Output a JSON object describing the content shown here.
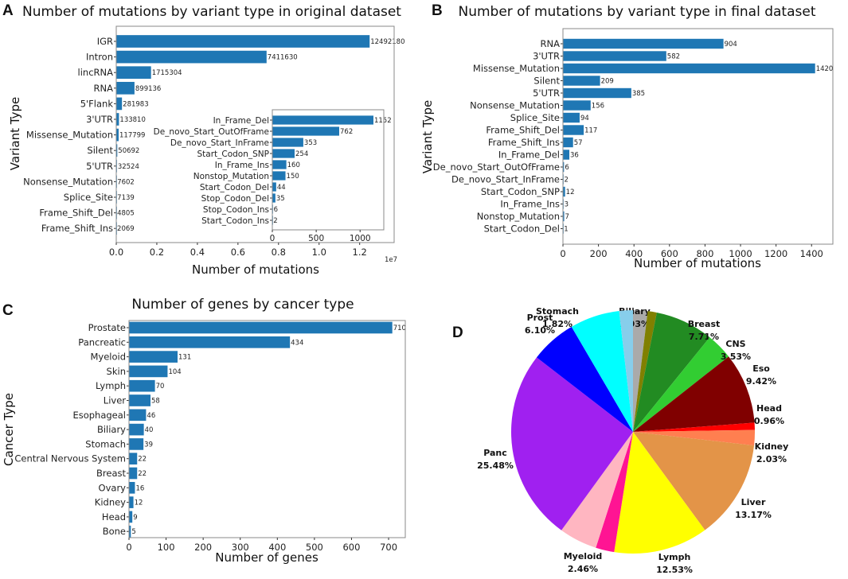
{
  "panel_labels": [
    "A",
    "B",
    "C",
    "D"
  ],
  "chart_data": [
    {
      "type": "bar",
      "orientation": "horizontal",
      "title": "Number of mutations by variant type in original dataset",
      "xlabel": "Number of mutations",
      "ylabel": "Variant Type",
      "x_offset_text": "1e7",
      "xlim": [
        0,
        13700000
      ],
      "xticks": [
        0,
        2000000,
        4000000,
        6000000,
        8000000,
        10000000,
        12000000
      ],
      "xtick_labels": [
        "0.0",
        "0.2",
        "0.4",
        "0.6",
        "0.8",
        "1.0",
        "1.2"
      ],
      "bar_color": "#1f77b4",
      "categories": [
        "IGR",
        "Intron",
        "lincRNA",
        "RNA",
        "5'Flank",
        "3'UTR",
        "Missense_Mutation",
        "Silent",
        "5'UTR",
        "Nonsense_Mutation",
        "Splice_Site",
        "Frame_Shift_Del",
        "Frame_Shift_Ins"
      ],
      "values": [
        12492180,
        7411630,
        1715304,
        899136,
        281983,
        133810,
        117799,
        50692,
        32524,
        7602,
        7139,
        4805,
        2069
      ],
      "inset": {
        "type": "bar",
        "orientation": "horizontal",
        "xlim": [
          0,
          1270
        ],
        "xticks": [
          0,
          500,
          1000
        ],
        "xtick_labels": [
          "0",
          "500",
          "1000"
        ],
        "categories": [
          "In_Frame_Del",
          "De_novo_Start_OutOfFrame",
          "De_novo_Start_InFrame",
          "Start_Codon_SNP",
          "In_Frame_Ins",
          "Nonstop_Mutation",
          "Start_Codon_Del",
          "Stop_Codon_Del",
          "Stop_Codon_Ins",
          "Start_Codon_Ins"
        ],
        "values": [
          1152,
          762,
          353,
          254,
          160,
          150,
          44,
          35,
          6,
          2
        ]
      }
    },
    {
      "type": "bar",
      "orientation": "horizontal",
      "title": "Number of mutations by variant type in final dataset",
      "xlabel": "Number of mutations",
      "ylabel": "Variant Type",
      "xlim": [
        0,
        1520
      ],
      "xticks": [
        0,
        200,
        400,
        600,
        800,
        1000,
        1200,
        1400
      ],
      "xtick_labels": [
        "0",
        "200",
        "400",
        "600",
        "800",
        "1000",
        "1200",
        "1400"
      ],
      "bar_color": "#1f77b4",
      "categories": [
        "RNA",
        "3'UTR",
        "Missense_Mutation",
        "Silent",
        "5'UTR",
        "Nonsense_Mutation",
        "Splice_Site",
        "Frame_Shift_Del",
        "Frame_Shift_Ins",
        "In_Frame_Del",
        "De_novo_Start_OutOfFrame",
        "De_novo_Start_InFrame",
        "Start_Codon_SNP",
        "In_Frame_Ins",
        "Nonstop_Mutation",
        "Start_Codon_Del"
      ],
      "values": [
        904,
        582,
        1420,
        209,
        385,
        156,
        94,
        117,
        57,
        36,
        6,
        2,
        12,
        3,
        7,
        1
      ]
    },
    {
      "type": "bar",
      "orientation": "horizontal",
      "title": "Number of genes by cancer type",
      "xlabel": "Number of genes",
      "ylabel": "Cancer Type",
      "xlim": [
        0,
        745
      ],
      "xticks": [
        0,
        100,
        200,
        300,
        400,
        500,
        600,
        700
      ],
      "xtick_labels": [
        "0",
        "100",
        "200",
        "300",
        "400",
        "500",
        "600",
        "700"
      ],
      "bar_color": "#1f77b4",
      "categories": [
        "Prostate",
        "Pancreatic",
        "Myeloid",
        "Skin",
        "Lymph",
        "Liver",
        "Esophageal",
        "Biliary",
        "Stomach",
        "Central Nervous System",
        "Breast",
        "Ovary",
        "Kidney",
        "Head",
        "Bone"
      ],
      "values": [
        710,
        434,
        131,
        104,
        70,
        58,
        46,
        40,
        39,
        22,
        22,
        16,
        12,
        9,
        5
      ]
    },
    {
      "type": "pie",
      "direction": "clockwise from top",
      "slices": [
        {
          "label": "Biliary",
          "value": 1.93,
          "pct_label": "1.93%",
          "color": "#aaaaaa"
        },
        {
          "label": "",
          "value": 1.2,
          "pct_label": "",
          "color": "#808000"
        },
        {
          "label": "Breast",
          "value": 7.71,
          "pct_label": "7.71%",
          "color": "#228b22"
        },
        {
          "label": "CNS",
          "value": 3.53,
          "pct_label": "3.53%",
          "color": "#32cd32"
        },
        {
          "label": "Eso",
          "value": 9.42,
          "pct_label": "9.42%",
          "color": "#800000"
        },
        {
          "label": "Head",
          "value": 0.96,
          "pct_label": "0.96%",
          "color": "#ff0000"
        },
        {
          "label": "Kidney",
          "value": 2.03,
          "pct_label": "2.03%",
          "color": "#ff7f50"
        },
        {
          "label": "Liver",
          "value": 13.17,
          "pct_label": "13.17%",
          "color": "#e39448"
        },
        {
          "label": "Lymph",
          "value": 12.53,
          "pct_label": "12.53%",
          "color": "#ffff00"
        },
        {
          "label": "Myeloid",
          "value": 2.46,
          "pct_label": "2.46%",
          "color": "#ff1493"
        },
        {
          "label": "",
          "value": 5.06,
          "pct_label": "",
          "color": "#ffb6c1"
        },
        {
          "label": "Panc",
          "value": 25.48,
          "pct_label": "25.48%",
          "color": "#a020f0"
        },
        {
          "label": "Prost",
          "value": 6.1,
          "pct_label": "6.10%",
          "color": "#0000ff"
        },
        {
          "label": "",
          "value": 6.6,
          "pct_label": "",
          "color": "#00ffff"
        },
        {
          "label": "Stomach",
          "value": 1.82,
          "pct_label": "1.82%",
          "color": "#87ceeb"
        }
      ]
    }
  ]
}
